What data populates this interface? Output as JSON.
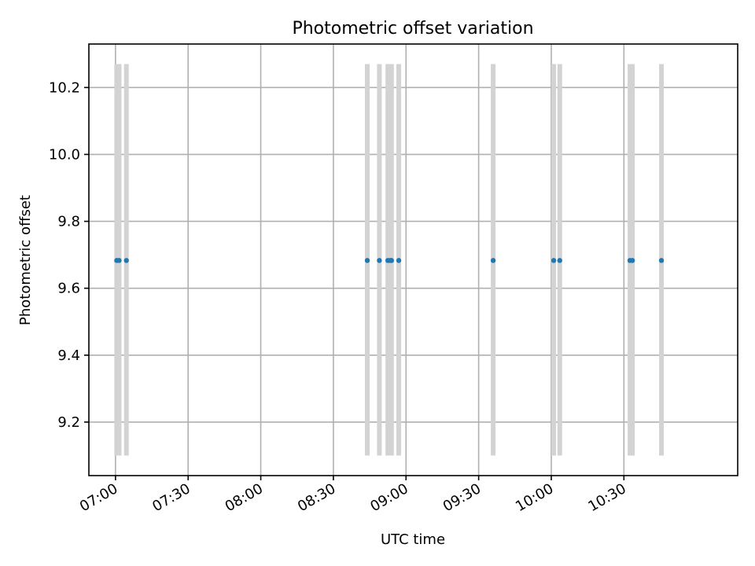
{
  "chart_data": {
    "type": "scatter",
    "title": "Photometric offset variation",
    "xlabel": "UTC time",
    "ylabel": "Photometric offset",
    "x_axis_type": "time",
    "x_ticks": [
      "07:00",
      "07:30",
      "08:00",
      "08:30",
      "09:00",
      "09:30",
      "10:00",
      "10:30"
    ],
    "y_ticks": [
      "9.2",
      "9.4",
      "9.6",
      "9.8",
      "10.0",
      "10.2"
    ],
    "xlim": [
      "06:49",
      "11:17"
    ],
    "ylim": [
      9.04,
      10.33
    ],
    "grid": true,
    "point_color": "#1f77b4",
    "errorbar_color": "#d3d3d3",
    "series": [
      {
        "points": [
          {
            "x": "07:00:30",
            "y": 9.683,
            "yerr_low": 9.1,
            "yerr_high": 10.27
          },
          {
            "x": "07:01:30",
            "y": 9.683,
            "yerr_low": 9.1,
            "yerr_high": 10.27
          },
          {
            "x": "07:04:30",
            "y": 9.683,
            "yerr_low": 9.1,
            "yerr_high": 10.27
          },
          {
            "x": "08:44:00",
            "y": 9.683,
            "yerr_low": 9.1,
            "yerr_high": 10.27
          },
          {
            "x": "08:49:00",
            "y": 9.683,
            "yerr_low": 9.1,
            "yerr_high": 10.27
          },
          {
            "x": "08:52:30",
            "y": 9.683,
            "yerr_low": 9.1,
            "yerr_high": 10.27
          },
          {
            "x": "08:53:30",
            "y": 9.683,
            "yerr_low": 9.1,
            "yerr_high": 10.27
          },
          {
            "x": "08:54:00",
            "y": 9.683,
            "yerr_low": 9.1,
            "yerr_high": 10.27
          },
          {
            "x": "08:57:00",
            "y": 9.683,
            "yerr_low": 9.1,
            "yerr_high": 10.27
          },
          {
            "x": "09:36:00",
            "y": 9.683,
            "yerr_low": 9.1,
            "yerr_high": 10.27
          },
          {
            "x": "10:01:00",
            "y": 9.683,
            "yerr_low": 9.1,
            "yerr_high": 10.27
          },
          {
            "x": "10:03:30",
            "y": 9.683,
            "yerr_low": 9.1,
            "yerr_high": 10.27
          },
          {
            "x": "10:32:30",
            "y": 9.683,
            "yerr_low": 9.1,
            "yerr_high": 10.27
          },
          {
            "x": "10:33:30",
            "y": 9.683,
            "yerr_low": 9.1,
            "yerr_high": 10.27
          },
          {
            "x": "10:45:30",
            "y": 9.683,
            "yerr_low": 9.1,
            "yerr_high": 10.27
          }
        ]
      }
    ]
  }
}
